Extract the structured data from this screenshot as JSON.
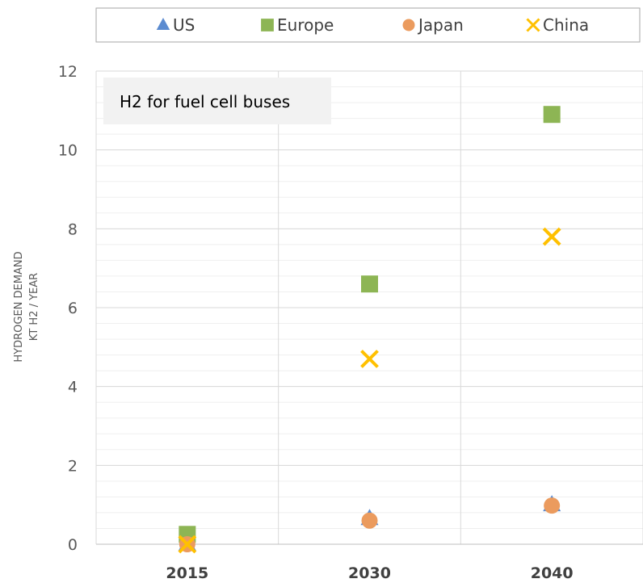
{
  "chart_data": {
    "type": "scatter",
    "annotation": "H2 for fuel cell buses",
    "ylabel_lines": [
      "HYDROGEN DEMAND",
      "KT H2 / YEAR"
    ],
    "categories": [
      "2015",
      "2030",
      "2040"
    ],
    "ylim": [
      0,
      12
    ],
    "yticks": [
      0,
      2,
      4,
      6,
      8,
      10,
      12
    ],
    "legend_position": "top",
    "grid": true,
    "series": [
      {
        "name": "US",
        "marker": "triangle",
        "color": "#5b8bd0",
        "values": [
          0.0,
          0.65,
          1.0
        ]
      },
      {
        "name": "Europe",
        "marker": "square",
        "color": "#8db554",
        "values": [
          0.25,
          6.6,
          10.9
        ]
      },
      {
        "name": "Japan",
        "marker": "circle",
        "color": "#eb9b5e",
        "values": [
          0.0,
          0.6,
          0.98
        ]
      },
      {
        "name": "China",
        "marker": "x",
        "color": "#ffc000",
        "values": [
          0.0,
          4.7,
          7.8
        ]
      }
    ]
  }
}
